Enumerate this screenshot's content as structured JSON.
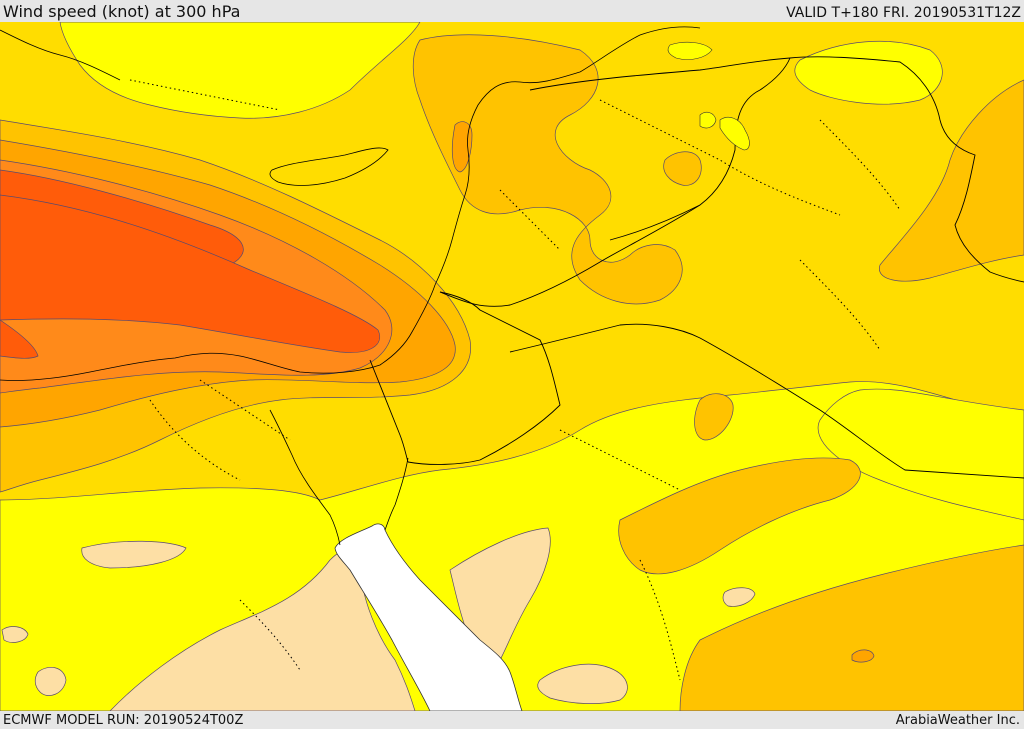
{
  "header": {
    "title": "Wind speed (knot) at 300 hPa",
    "valid": "VALID T+180 FRI. 20190531T12Z"
  },
  "footer": {
    "model_run": "ECMWF MODEL RUN: 20190524T00Z",
    "credit": "ArabiaWeather Inc."
  },
  "map": {
    "field": "wind speed 300 hPa",
    "palette": {
      "light_tan": "#fddfa5",
      "yellow": "#ffff00",
      "gold": "#ffdd00",
      "orange_light": "#ffc300",
      "orange": "#ffa500",
      "orange_dark": "#ff8a1a",
      "red_orange": "#ff5c0a",
      "sea": "#ffffff",
      "contour": "#5a4a6e",
      "border": "#000000"
    },
    "has_legend": false
  }
}
